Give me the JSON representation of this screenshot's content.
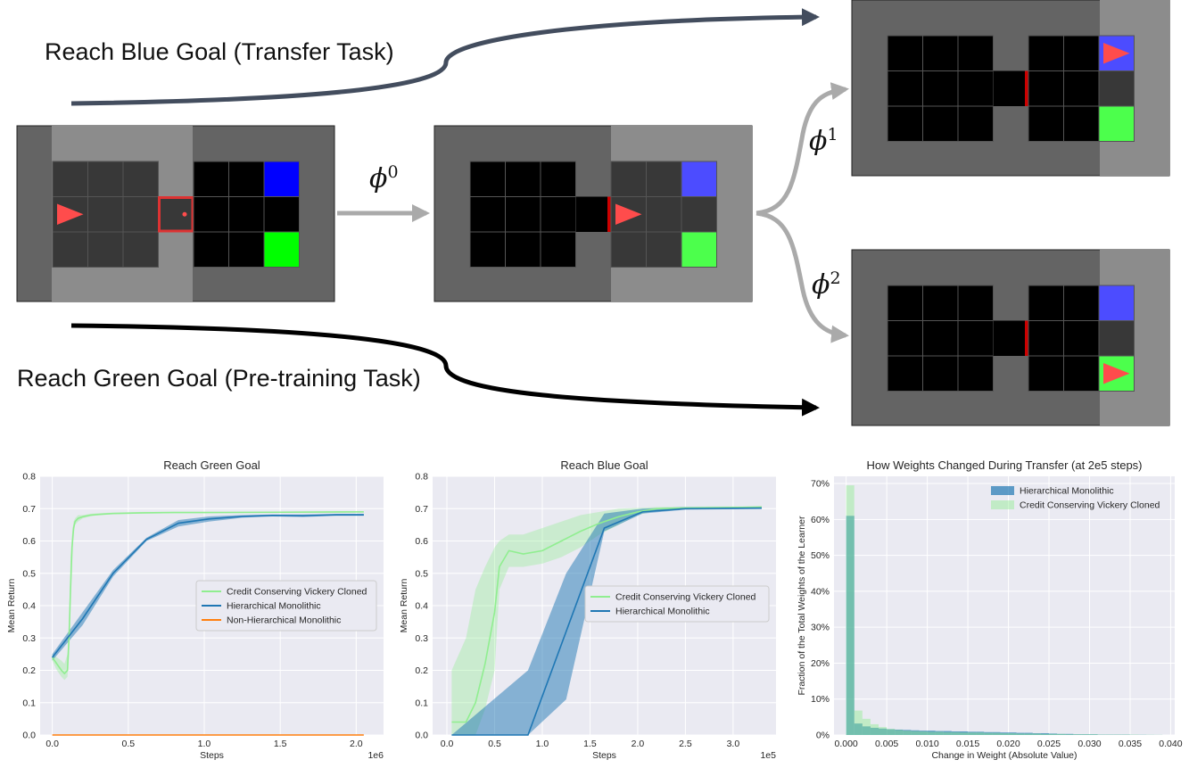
{
  "diagram": {
    "transfer_label": "Reach Blue Goal (Transfer Task)",
    "pretrain_label": "Reach Green Goal (Pre-training Task)",
    "phi_symbol": "ϕ",
    "phi_indices": [
      "0",
      "1",
      "2"
    ],
    "colors": {
      "wall": "#646464",
      "corridor": "#8c8c8c",
      "cell_dark": "#383838",
      "cell_black": "#000000",
      "blue_goal_initial": "#0000ff",
      "blue_goal": "#4c4cff",
      "green_goal_initial": "#00ff00",
      "green_goal": "#4cff4c",
      "agent": "#ff4c4c",
      "door": "#cc0000",
      "arrow_transfer": "#434d5e",
      "arrow_pretrain": "#000000",
      "arrow_gray": "#aaaaaa"
    }
  },
  "chart_data": [
    {
      "type": "line",
      "title": "Reach Green Goal",
      "xlabel": "Steps",
      "ylabel": "Mean Return",
      "x_multiplier": "1e6",
      "xlim": [
        -0.08,
        2.18
      ],
      "ylim": [
        0,
        0.8
      ],
      "xticks": [
        "0.0",
        "0.5",
        "1.0",
        "1.5",
        "2.0"
      ],
      "yticks": [
        "0.0",
        "0.1",
        "0.2",
        "0.3",
        "0.4",
        "0.5",
        "0.6",
        "0.7",
        "0.8"
      ],
      "legend_position": "center-right",
      "grid": true,
      "series": [
        {
          "name": "Credit Conserving Vickery Cloned",
          "color": "#90ee90",
          "x": [
            0,
            0.03,
            0.06,
            0.08,
            0.1,
            0.11,
            0.12,
            0.13,
            0.14,
            0.15,
            0.17,
            0.2,
            0.25,
            0.3,
            0.4,
            0.6,
            0.8,
            1.0,
            1.5,
            2.05
          ],
          "y": [
            0.24,
            0.22,
            0.2,
            0.19,
            0.2,
            0.3,
            0.45,
            0.58,
            0.64,
            0.66,
            0.67,
            0.675,
            0.68,
            0.682,
            0.685,
            0.687,
            0.688,
            0.688,
            0.689,
            0.69
          ],
          "lower": [
            0.23,
            0.2,
            0.18,
            0.17,
            0.18,
            0.25,
            0.4,
            0.55,
            0.62,
            0.65,
            0.66,
            0.67,
            0.676,
            0.68,
            0.683,
            0.685,
            0.686,
            0.686,
            0.687,
            0.688
          ],
          "upper": [
            0.25,
            0.24,
            0.23,
            0.22,
            0.25,
            0.35,
            0.55,
            0.62,
            0.66,
            0.67,
            0.68,
            0.68,
            0.684,
            0.686,
            0.688,
            0.69,
            0.69,
            0.69,
            0.691,
            0.692
          ]
        },
        {
          "name": "Hierarchical Monolithic",
          "color": "#1f77b4",
          "x": [
            0,
            0.2,
            0.4,
            0.62,
            0.83,
            1.03,
            1.25,
            1.45,
            1.65,
            1.87,
            2.05
          ],
          "y": [
            0.24,
            0.36,
            0.5,
            0.605,
            0.655,
            0.668,
            0.676,
            0.679,
            0.678,
            0.681,
            0.681
          ],
          "lower": [
            0.23,
            0.34,
            0.49,
            0.6,
            0.645,
            0.66,
            0.672,
            0.676,
            0.674,
            0.678,
            0.678
          ],
          "upper": [
            0.25,
            0.38,
            0.51,
            0.61,
            0.665,
            0.676,
            0.68,
            0.682,
            0.682,
            0.684,
            0.684
          ]
        },
        {
          "name": "Non-Hierarchical Monolithic",
          "color": "#ff7f0e",
          "x": [
            0,
            2.05
          ],
          "y": [
            0,
            0
          ]
        }
      ]
    },
    {
      "type": "line",
      "title": "Reach Blue Goal",
      "xlabel": "Steps",
      "ylabel": "Mean Return",
      "x_multiplier": "1e5",
      "xlim": [
        -0.15,
        3.45
      ],
      "ylim": [
        0,
        0.8
      ],
      "xticks": [
        "0.0",
        "0.5",
        "1.0",
        "1.5",
        "2.0",
        "2.5",
        "3.0"
      ],
      "yticks": [
        "0.0",
        "0.1",
        "0.2",
        "0.3",
        "0.4",
        "0.5",
        "0.6",
        "0.7",
        "0.8"
      ],
      "legend_position": "center-right",
      "grid": true,
      "series": [
        {
          "name": "Credit Conserving Vickery Cloned",
          "color": "#90ee90",
          "x": [
            0.05,
            0.2,
            0.3,
            0.4,
            0.5,
            0.55,
            0.65,
            0.8,
            1.0,
            1.2,
            1.4,
            1.6,
            1.8,
            2.0,
            2.2,
            2.5,
            2.8,
            3.1,
            3.3
          ],
          "y": [
            0.04,
            0.04,
            0.1,
            0.22,
            0.38,
            0.52,
            0.57,
            0.56,
            0.57,
            0.6,
            0.63,
            0.655,
            0.675,
            0.69,
            0.7,
            0.702,
            0.703,
            0.704,
            0.705
          ],
          "lower": [
            0.0,
            0.0,
            0.0,
            0.08,
            0.2,
            0.45,
            0.52,
            0.52,
            0.53,
            0.55,
            0.58,
            0.62,
            0.65,
            0.68,
            0.695,
            0.698,
            0.7,
            0.701,
            0.702
          ],
          "upper": [
            0.2,
            0.3,
            0.45,
            0.52,
            0.58,
            0.6,
            0.62,
            0.62,
            0.64,
            0.66,
            0.68,
            0.69,
            0.7,
            0.702,
            0.705,
            0.706,
            0.707,
            0.707,
            0.708
          ]
        },
        {
          "name": "Hierarchical Monolithic",
          "color": "#1f77b4",
          "x": [
            0.05,
            0.85,
            1.25,
            1.65,
            2.05,
            2.5,
            3.3
          ],
          "y": [
            0,
            0,
            0.32,
            0.64,
            0.69,
            0.7,
            0.702
          ],
          "lower": [
            0,
            0,
            0.11,
            0.63,
            0.685,
            0.697,
            0.699
          ],
          "upper": [
            0,
            0.2,
            0.5,
            0.685,
            0.7,
            0.705,
            0.706
          ]
        }
      ]
    },
    {
      "type": "histogram",
      "title": "How Weights Changed During Transfer (at 2e5 steps)",
      "xlabel": "Change in Weight (Absolute Value)",
      "ylabel": "Fraction of the Total Weights of the Learner",
      "xlim": [
        -0.0015,
        0.0405
      ],
      "ylim": [
        0,
        0.72
      ],
      "xticks": [
        "0.000",
        "0.005",
        "0.010",
        "0.015",
        "0.020",
        "0.025",
        "0.030",
        "0.035",
        "0.040"
      ],
      "yticks": [
        "0%",
        "10%",
        "20%",
        "30%",
        "40%",
        "50%",
        "60%",
        "70%"
      ],
      "legend_position": "top-right",
      "grid": true,
      "bin_width": 0.001,
      "bin_start": 0,
      "series": [
        {
          "name": "Hierarchical Monolithic",
          "color": "#1f77b4",
          "values": [
            0.61,
            0.032,
            0.024,
            0.02,
            0.018,
            0.016,
            0.015,
            0.014,
            0.013,
            0.012,
            0.012,
            0.011,
            0.011,
            0.01,
            0.01,
            0.009,
            0.009,
            0.008,
            0.008,
            0.007,
            0.007,
            0.006,
            0.006,
            0.005,
            0.005,
            0.004,
            0.003,
            0.003,
            0.002,
            0.002,
            0.002,
            0.001,
            0.001,
            0.001,
            0.001,
            0.0005,
            0.0005,
            0.0003,
            0.0002
          ]
        },
        {
          "name": "Credit Conserving Vickery Cloned",
          "color": "#90ee90",
          "values": [
            0.695,
            0.068,
            0.045,
            0.03,
            0.022,
            0.017,
            0.014,
            0.012,
            0.011,
            0.01,
            0.009,
            0.009,
            0.008,
            0.008,
            0.007,
            0.007,
            0.007,
            0.006,
            0.006,
            0.005,
            0.005,
            0.004,
            0.004,
            0.004,
            0.003,
            0.003,
            0.003,
            0.002,
            0.002,
            0.002,
            0.002,
            0.001,
            0.001,
            0.001,
            0.001,
            0.001,
            0.0005,
            0.0005,
            0.0003
          ]
        }
      ]
    }
  ]
}
